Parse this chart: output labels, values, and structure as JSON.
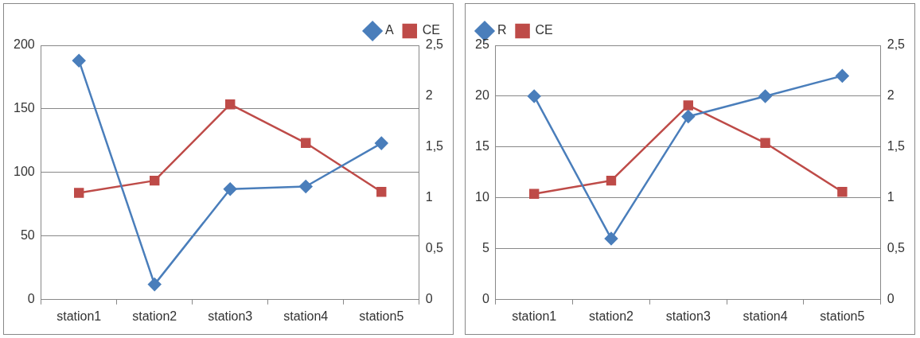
{
  "chart_data": [
    {
      "type": "line",
      "categories": [
        "station1",
        "station2",
        "station3",
        "station4",
        "station5"
      ],
      "series": [
        {
          "name": "A",
          "color": "#4a7ebb",
          "marker": "diamond",
          "values": [
            188,
            12,
            87,
            89,
            123
          ]
        },
        {
          "name": "CE",
          "color": "#be4b48",
          "marker": "square",
          "axis": "y2",
          "values": [
            1.05,
            1.17,
            1.92,
            1.54,
            1.06
          ]
        }
      ],
      "ylim": [
        0,
        200
      ],
      "yticks": [
        0,
        50,
        100,
        150,
        200
      ],
      "y2lim": [
        0,
        2.5
      ],
      "y2ticks": [
        0,
        {
          "value": 0.5,
          "label": "0,5"
        },
        1,
        {
          "value": 1.5,
          "label": "1,5"
        },
        2,
        {
          "value": 2.5,
          "label": "2,5"
        }
      ],
      "grid": "y",
      "legend": "top right"
    },
    {
      "type": "line",
      "categories": [
        "station1",
        "station2",
        "station3",
        "station4",
        "station5"
      ],
      "series": [
        {
          "name": "R",
          "color": "#4a7ebb",
          "marker": "diamond",
          "values": [
            20,
            6,
            18,
            20,
            22
          ]
        },
        {
          "name": "CE",
          "color": "#be4b48",
          "marker": "square",
          "axis": "y2",
          "values": [
            1.04,
            1.17,
            1.91,
            1.54,
            1.06
          ]
        }
      ],
      "ylim": [
        0,
        25
      ],
      "yticks": [
        0,
        5,
        10,
        15,
        20,
        25
      ],
      "y2lim": [
        0,
        2.5
      ],
      "y2ticks": [
        0,
        {
          "value": 0.5,
          "label": "0,5"
        },
        1,
        {
          "value": 1.5,
          "label": "1,5"
        },
        2,
        {
          "value": 2.5,
          "label": "2,5"
        }
      ],
      "grid": "y",
      "legend": "top left"
    }
  ]
}
